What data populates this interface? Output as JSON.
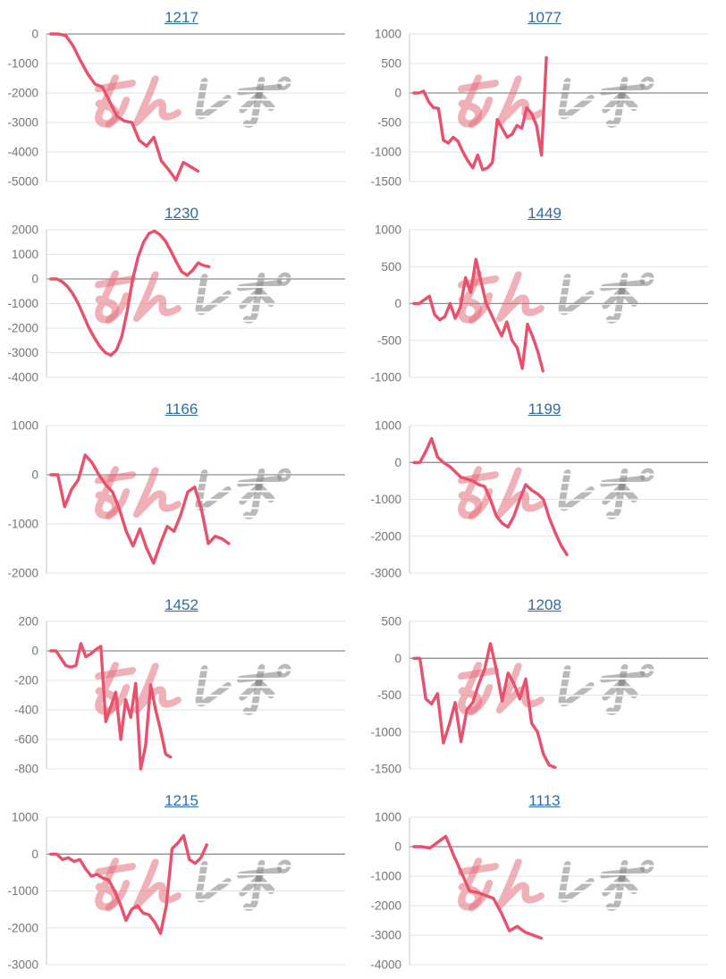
{
  "page": {
    "background": "#ffffff"
  },
  "style": {
    "line_color": "#e9506b",
    "title_color": "#2d6ca8",
    "tick_color": "#757575",
    "grid_color": "#e3e3e3",
    "zero_line_color": "#8f8f8f",
    "axis_color": "#c9c9c9"
  },
  "watermark": {
    "text_pink": "みん",
    "text_gray": "レポ",
    "pink_color": "rgba(228,112,126,0.55)",
    "gray_color": "rgba(138,138,138,0.60)"
  },
  "chart_data": [
    {
      "type": "line",
      "title": "1217",
      "ylim": [
        -5000,
        0
      ],
      "yticks": [
        0,
        -1000,
        -2000,
        -3000,
        -4000,
        -5000
      ],
      "x_capacity": 40,
      "values": [
        0,
        0,
        -50,
        -400,
        -900,
        -1350,
        -1700,
        -1800,
        -2300,
        -2800,
        -2950,
        -3000,
        -3600,
        -3800,
        -3500,
        -4300,
        -4600,
        -4950,
        -4350,
        -4500,
        -4650
      ]
    },
    {
      "type": "line",
      "title": "1077",
      "ylim": [
        -1500,
        1000
      ],
      "yticks": [
        1000,
        500,
        0,
        -500,
        -1000,
        -1500
      ],
      "x_capacity": 60,
      "values": [
        0,
        0,
        30,
        -150,
        -250,
        -260,
        -800,
        -850,
        -750,
        -820,
        -1000,
        -1150,
        -1270,
        -1050,
        -1300,
        -1270,
        -1180,
        -450,
        -600,
        -750,
        -700,
        -550,
        -600,
        -250,
        -350,
        -550,
        -1050,
        600
      ]
    },
    {
      "type": "line",
      "title": "1230",
      "ylim": [
        -4000,
        2000
      ],
      "yticks": [
        2000,
        1000,
        0,
        -1000,
        -2000,
        -3000,
        -4000
      ],
      "x_capacity": 54,
      "values": [
        0,
        0,
        -100,
        -300,
        -600,
        -1000,
        -1500,
        -2000,
        -2400,
        -2750,
        -3000,
        -3100,
        -2900,
        -2350,
        -1300,
        0,
        900,
        1500,
        1850,
        1950,
        1800,
        1550,
        1150,
        700,
        300,
        150,
        350,
        650,
        550,
        500
      ]
    },
    {
      "type": "line",
      "title": "1449",
      "ylim": [
        -1000,
        1000
      ],
      "yticks": [
        1000,
        500,
        0,
        -500,
        -1000
      ],
      "x_capacity": 57,
      "values": [
        0,
        0,
        50,
        100,
        -150,
        -220,
        -180,
        0,
        -200,
        -50,
        350,
        150,
        600,
        300,
        0,
        -150,
        -300,
        -440,
        -250,
        -500,
        -600,
        -880,
        -280,
        -450,
        -650,
        -915
      ]
    },
    {
      "type": "line",
      "title": "1166",
      "ylim": [
        -2000,
        1000
      ],
      "yticks": [
        1000,
        0,
        -1000,
        -2000
      ],
      "x_capacity": 43,
      "values": [
        0,
        0,
        -650,
        -300,
        -100,
        400,
        250,
        0,
        -200,
        -350,
        -700,
        -1150,
        -1450,
        -1100,
        -1500,
        -1800,
        -1400,
        -1050,
        -1150,
        -800,
        -350,
        -250,
        -700,
        -1400,
        -1250,
        -1300,
        -1400
      ]
    },
    {
      "type": "line",
      "title": "1199",
      "ylim": [
        -3000,
        1000
      ],
      "yticks": [
        1000,
        0,
        -1000,
        -2000,
        -3000
      ],
      "x_capacity": 50,
      "values": [
        0,
        0,
        300,
        650,
        150,
        0,
        -100,
        -250,
        -400,
        -450,
        -500,
        -600,
        -650,
        -1000,
        -1450,
        -1650,
        -1750,
        -1450,
        -1000,
        -600,
        -750,
        -850,
        -1000,
        -1500,
        -1900,
        -2250,
        -2500
      ]
    },
    {
      "type": "line",
      "title": "1452",
      "ylim": [
        -800,
        200
      ],
      "yticks": [
        200,
        0,
        -200,
        -400,
        -600,
        -800
      ],
      "x_capacity": 59,
      "values": [
        0,
        0,
        -50,
        -100,
        -110,
        -100,
        50,
        -40,
        -20,
        10,
        30,
        -480,
        -380,
        -280,
        -600,
        -330,
        -450,
        -220,
        -800,
        -640,
        -230,
        -400,
        -540,
        -700,
        -720
      ]
    },
    {
      "type": "line",
      "title": "1208",
      "ylim": [
        -1500,
        500
      ],
      "yticks": [
        500,
        0,
        -500,
        -1000,
        -1500
      ],
      "x_capacity": 50,
      "values": [
        0,
        0,
        -550,
        -620,
        -480,
        -1150,
        -900,
        -600,
        -1130,
        -700,
        -600,
        -350,
        -150,
        200,
        -150,
        -580,
        -200,
        -350,
        -550,
        -280,
        -880,
        -1000,
        -1300,
        -1450,
        -1480
      ]
    },
    {
      "type": "line",
      "title": "1215",
      "ylim": [
        -3000,
        1000
      ],
      "yticks": [
        1000,
        0,
        -1000,
        -2000,
        -3000
      ],
      "x_capacity": 51,
      "values": [
        0,
        0,
        -150,
        -100,
        -200,
        -150,
        -400,
        -600,
        -550,
        -650,
        -700,
        -1000,
        -1350,
        -1800,
        -1500,
        -1400,
        -1600,
        -1650,
        -1850,
        -2150,
        -1400,
        150,
        300,
        500,
        -150,
        -250,
        -100,
        250
      ]
    },
    {
      "type": "line",
      "title": "1113",
      "ylim": [
        -4000,
        1000
      ],
      "yticks": [
        1000,
        0,
        -1000,
        -2000,
        -3000,
        -4000
      ],
      "x_capacity": 37,
      "values": [
        0,
        0,
        -50,
        150,
        350,
        -300,
        -900,
        -1500,
        -1550,
        -1650,
        -1750,
        -2250,
        -2850,
        -2700,
        -2900,
        -3000,
        -3100
      ]
    }
  ]
}
